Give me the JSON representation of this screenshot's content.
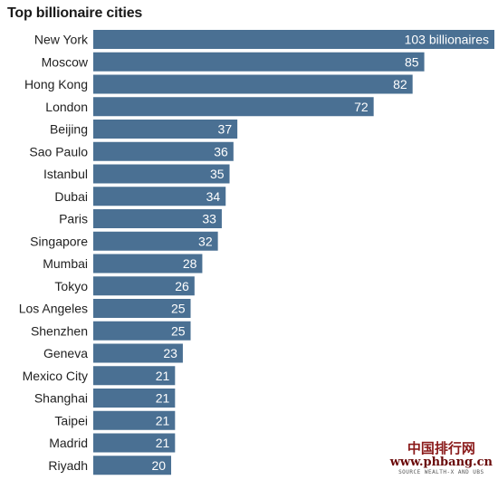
{
  "chart_data": {
    "type": "bar",
    "orientation": "horizontal",
    "title": "Top billionaire cities",
    "categories": [
      "New York",
      "Moscow",
      "Hong Kong",
      "London",
      "Beijing",
      "Sao Paulo",
      "Istanbul",
      "Dubai",
      "Paris",
      "Singapore",
      "Mumbai",
      "Tokyo",
      "Los Angeles",
      "Shenzhen",
      "Geneva",
      "Mexico City",
      "Shanghai",
      "Taipei",
      "Madrid",
      "Riyadh"
    ],
    "values": [
      103,
      85,
      82,
      72,
      37,
      36,
      35,
      34,
      33,
      32,
      28,
      26,
      25,
      25,
      23,
      21,
      21,
      21,
      21,
      20
    ],
    "value_labels": [
      "103 billionaires",
      "85",
      "82",
      "72",
      "37",
      "36",
      "35",
      "34",
      "33",
      "32",
      "28",
      "26",
      "25",
      "25",
      "23",
      "21",
      "21",
      "21",
      "21",
      "20"
    ],
    "xlim": [
      0,
      103
    ],
    "grid": false,
    "bar_color": "#4a7093"
  },
  "watermark": {
    "cn_text": "中国排行网",
    "url": "www.phbang.cn",
    "source": "SOURCE WEALTH-X AND UBS"
  }
}
